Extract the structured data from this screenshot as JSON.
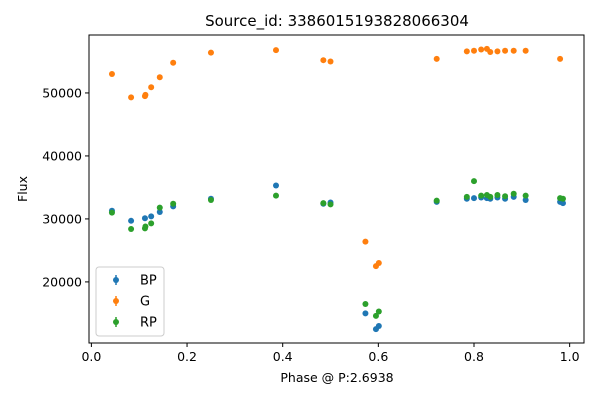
{
  "chart_data": {
    "type": "scatter",
    "title": "Source_id: 3386015193828066304",
    "xlabel": "Phase @ P:2.6938",
    "ylabel": "Flux",
    "xlim": [
      -0.005,
      1.03
    ],
    "ylim": [
      10300,
      59200
    ],
    "xticks": [
      0.0,
      0.2,
      0.4,
      0.6,
      0.8,
      1.0
    ],
    "xtick_labels": [
      "0.0",
      "0.2",
      "0.4",
      "0.6",
      "0.8",
      "1.0"
    ],
    "yticks": [
      20000,
      30000,
      40000,
      50000
    ],
    "ytick_labels": [
      "20000",
      "30000",
      "40000",
      "50000"
    ],
    "grid": false,
    "legend_position": "lower-left",
    "series": [
      {
        "name": "BP",
        "color": "#1f77b4",
        "points": [
          [
            0.043,
            31300
          ],
          [
            0.083,
            29700
          ],
          [
            0.112,
            30100
          ],
          [
            0.125,
            30400
          ],
          [
            0.143,
            31100
          ],
          [
            0.171,
            32000
          ],
          [
            0.25,
            33200
          ],
          [
            0.386,
            35300
          ],
          [
            0.485,
            32400
          ],
          [
            0.5,
            32600
          ],
          [
            0.573,
            15000
          ],
          [
            0.595,
            12500
          ],
          [
            0.601,
            13000
          ],
          [
            0.722,
            32700
          ],
          [
            0.785,
            33200
          ],
          [
            0.8,
            33300
          ],
          [
            0.815,
            33400
          ],
          [
            0.827,
            33300
          ],
          [
            0.834,
            33200
          ],
          [
            0.849,
            33400
          ],
          [
            0.865,
            33200
          ],
          [
            0.883,
            33500
          ],
          [
            0.908,
            33000
          ],
          [
            0.98,
            32700
          ],
          [
            0.986,
            32500
          ]
        ]
      },
      {
        "name": "G",
        "color": "#ff7f0e",
        "points": [
          [
            0.043,
            53000
          ],
          [
            0.083,
            49300
          ],
          [
            0.112,
            49500
          ],
          [
            0.113,
            49700
          ],
          [
            0.125,
            50900
          ],
          [
            0.143,
            52500
          ],
          [
            0.171,
            54800
          ],
          [
            0.25,
            56400
          ],
          [
            0.386,
            56800
          ],
          [
            0.485,
            55200
          ],
          [
            0.5,
            55000
          ],
          [
            0.573,
            26400
          ],
          [
            0.595,
            22500
          ],
          [
            0.601,
            23000
          ],
          [
            0.722,
            55400
          ],
          [
            0.785,
            56600
          ],
          [
            0.8,
            56700
          ],
          [
            0.815,
            56900
          ],
          [
            0.827,
            57000
          ],
          [
            0.834,
            56500
          ],
          [
            0.849,
            56600
          ],
          [
            0.865,
            56700
          ],
          [
            0.883,
            56700
          ],
          [
            0.908,
            56700
          ],
          [
            0.98,
            55400
          ]
        ]
      },
      {
        "name": "RP",
        "color": "#2ca02c",
        "points": [
          [
            0.043,
            31000
          ],
          [
            0.083,
            28400
          ],
          [
            0.112,
            28500
          ],
          [
            0.113,
            28800
          ],
          [
            0.125,
            29300
          ],
          [
            0.143,
            31800
          ],
          [
            0.171,
            32400
          ],
          [
            0.25,
            33000
          ],
          [
            0.386,
            33700
          ],
          [
            0.485,
            32500
          ],
          [
            0.5,
            32300
          ],
          [
            0.573,
            16500
          ],
          [
            0.595,
            14600
          ],
          [
            0.601,
            15300
          ],
          [
            0.722,
            32900
          ],
          [
            0.785,
            33500
          ],
          [
            0.8,
            36000
          ],
          [
            0.815,
            33700
          ],
          [
            0.827,
            33800
          ],
          [
            0.834,
            33500
          ],
          [
            0.849,
            33800
          ],
          [
            0.865,
            33600
          ],
          [
            0.883,
            34000
          ],
          [
            0.908,
            33700
          ],
          [
            0.98,
            33300
          ],
          [
            0.986,
            33200
          ]
        ]
      }
    ]
  }
}
